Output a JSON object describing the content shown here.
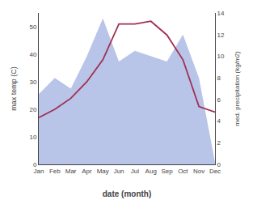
{
  "chart_data": {
    "type": "line",
    "xlabel": "date (month)",
    "ylabel": "max temp (C)",
    "y2label": "med. precipitation (kg/m2)",
    "categories": [
      "Jan",
      "Feb",
      "Mar",
      "Apr",
      "May",
      "Jun",
      "Jul",
      "Aug",
      "Sep",
      "Oct",
      "Nov",
      "Dec"
    ],
    "series": [
      {
        "type": "line",
        "color": "#a03050",
        "values": [
          17,
          20,
          24,
          30,
          38,
          51,
          51,
          52,
          47,
          38,
          21,
          19
        ]
      },
      {
        "type": "area",
        "color": "#b8c4e8",
        "axis": "y2",
        "values": [
          6.5,
          8.0,
          7.0,
          10.0,
          13.5,
          9.5,
          10.5,
          10.0,
          9.5,
          12.0,
          8.0,
          0.2
        ]
      }
    ],
    "ylim": [
      0,
      55
    ],
    "yticks": [
      0,
      10,
      20,
      30,
      40,
      50
    ],
    "y2lim": [
      0,
      14
    ],
    "y2ticks": [
      0,
      2,
      4,
      6,
      8,
      10,
      12,
      14
    ],
    "grid": false
  }
}
